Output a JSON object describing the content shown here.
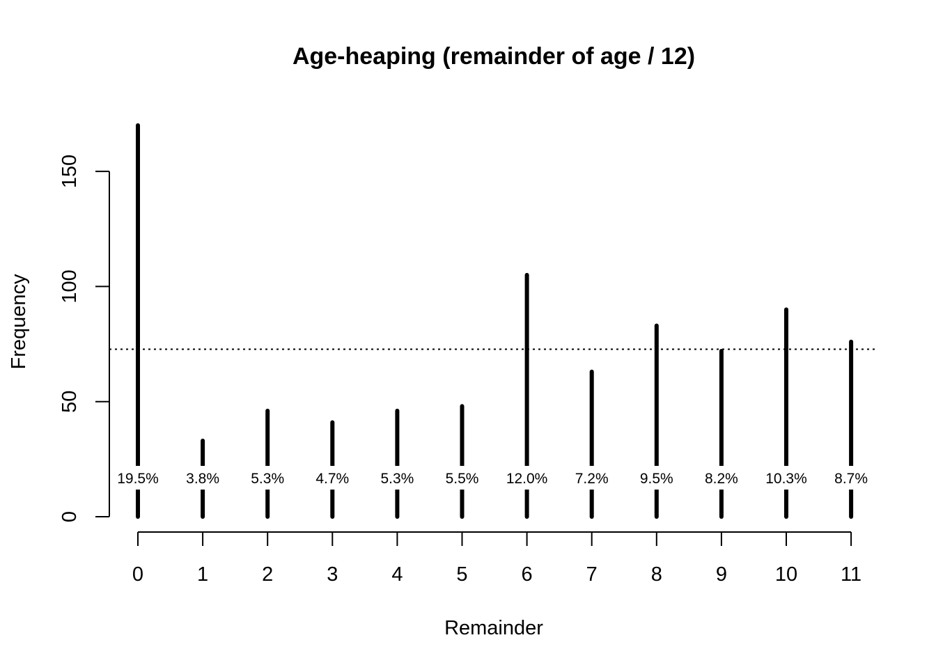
{
  "chart_data": {
    "type": "bar",
    "title": "Age-heaping (remainder of age / 12)",
    "xlabel": "Remainder",
    "ylabel": "Frequency",
    "categories": [
      "0",
      "1",
      "2",
      "3",
      "4",
      "5",
      "6",
      "7",
      "8",
      "9",
      "10",
      "11"
    ],
    "values": [
      170,
      33,
      46,
      41,
      46,
      48,
      105,
      63,
      83,
      72,
      90,
      76
    ],
    "percent_labels": [
      "19.5%",
      "3.8%",
      "5.3%",
      "4.7%",
      "5.3%",
      "5.5%",
      "12.0%",
      "7.2%",
      "9.5%",
      "8.2%",
      "10.3%",
      "8.7%"
    ],
    "y_ticks": [
      0,
      50,
      100,
      150
    ],
    "ylim": [
      0,
      170
    ],
    "reference_line": {
      "value": 72.75,
      "style": "dotted"
    },
    "grid": false,
    "legend": "none",
    "bar_color": "#000000"
  }
}
